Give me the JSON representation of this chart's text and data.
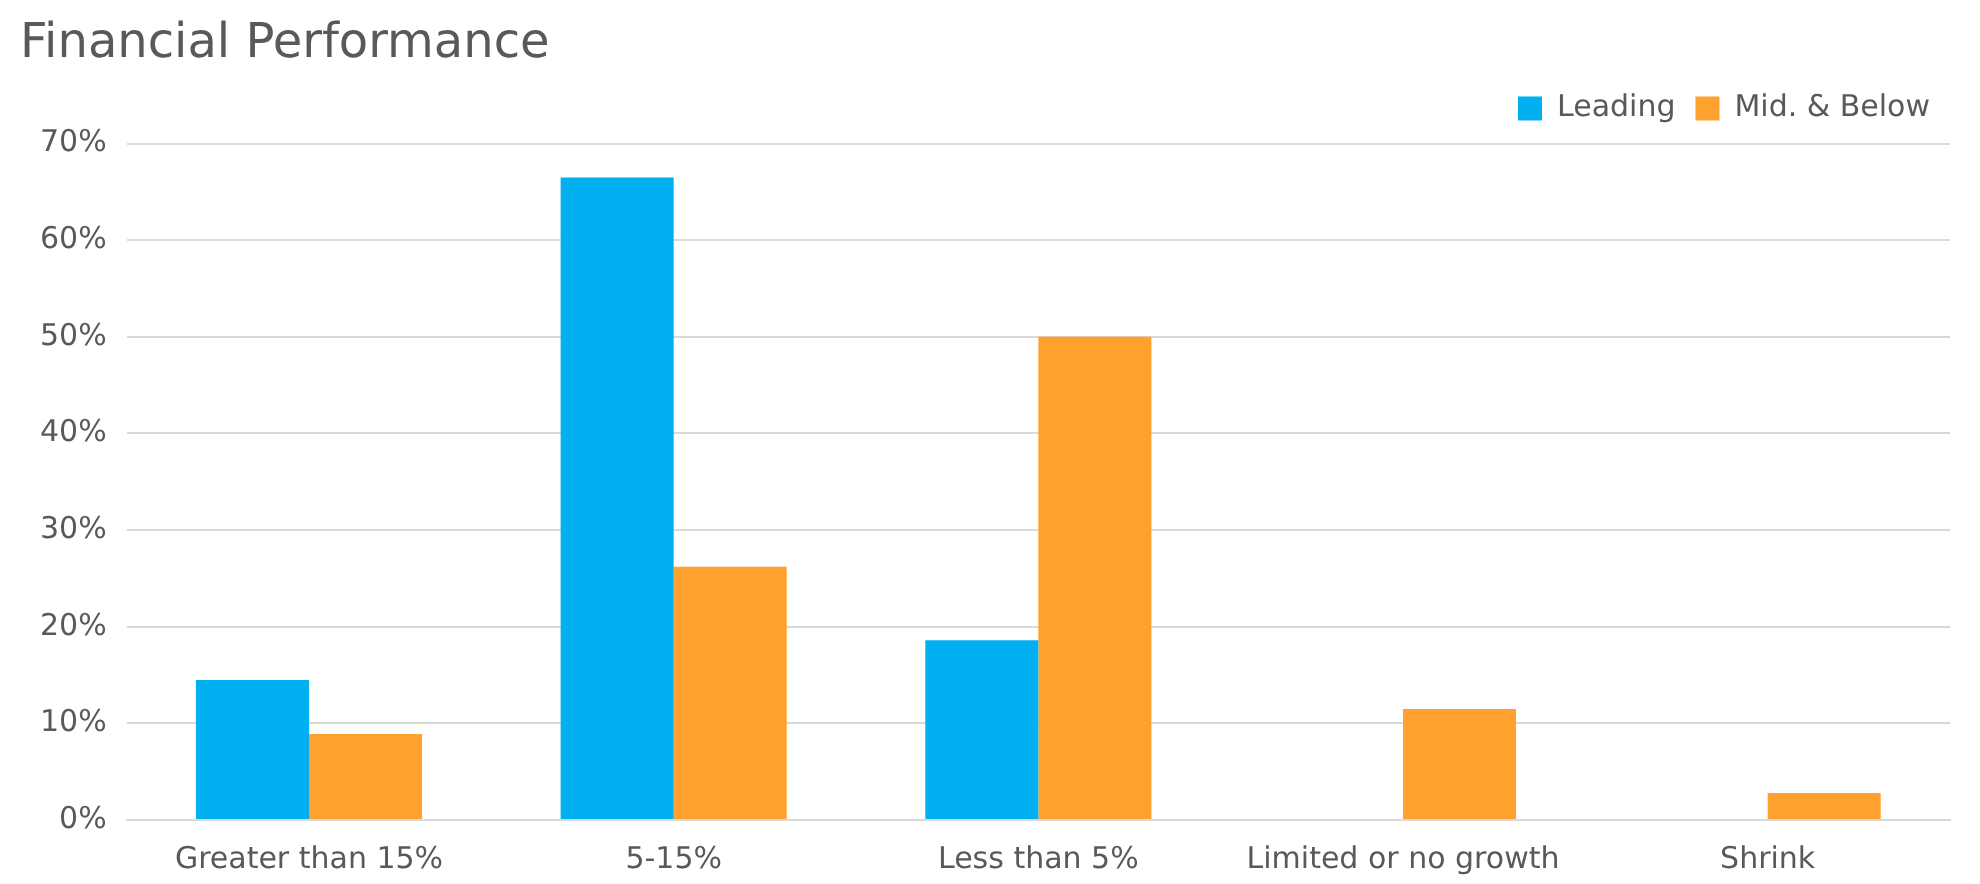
{
  "chart_data": {
    "type": "bar",
    "title": "Financial Performance",
    "categories": [
      "Greater than 15%",
      "5-15%",
      "Less than 5%",
      "Limited or no growth",
      "Shrink"
    ],
    "series": [
      {
        "name": "Leading",
        "color": "#00b0f0",
        "values": [
          14.5,
          66.5,
          18.6,
          0,
          0
        ]
      },
      {
        "name": "Mid. & Below",
        "color": "#ffa12f",
        "values": [
          8.9,
          26.2,
          50,
          11.5,
          2.8
        ]
      }
    ],
    "ylim": [
      0,
      70
    ],
    "yticks": [
      {
        "value": 0,
        "label": "0%"
      },
      {
        "value": 10,
        "label": "10%"
      },
      {
        "value": 20,
        "label": "20%"
      },
      {
        "value": 30,
        "label": "30%"
      },
      {
        "value": 40,
        "label": "40%"
      },
      {
        "value": 50,
        "label": "50%"
      },
      {
        "value": 60,
        "label": "60%"
      },
      {
        "value": 70,
        "label": "70%"
      }
    ],
    "grid": "y",
    "legend": "top right"
  }
}
